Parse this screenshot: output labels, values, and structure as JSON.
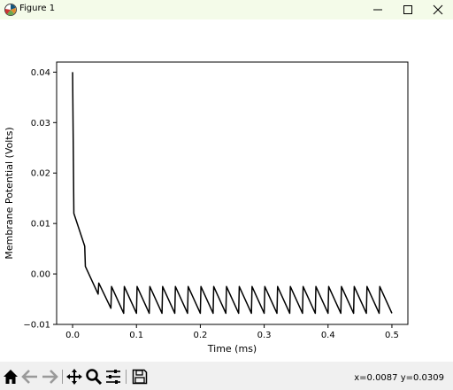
{
  "window": {
    "title": "Figure 1"
  },
  "icons": {
    "app": "matplotlib-icon",
    "minimize": "minimize-icon",
    "maximize": "maximize-icon",
    "close": "close-icon"
  },
  "toolbar": {
    "buttons": [
      "home-icon",
      "back-arrow-icon",
      "forward-arrow-icon",
      "pan-icon",
      "zoom-icon",
      "configure-subplots-icon",
      "save-icon"
    ],
    "coords": "x=0.0087 y=0.0309"
  },
  "chart_data": {
    "type": "line",
    "xlabel": "Time (ms)",
    "ylabel": "Membrane Potential (Volts)",
    "xlim": [
      -0.025,
      0.525
    ],
    "ylim": [
      -0.01,
      0.042
    ],
    "xticks": [
      0.0,
      0.1,
      0.2,
      0.3,
      0.4,
      0.5
    ],
    "xtick_labels": [
      "0.0",
      "0.1",
      "0.2",
      "0.3",
      "0.4",
      "0.5"
    ],
    "yticks": [
      -0.01,
      0.0,
      0.01,
      0.02,
      0.03,
      0.04
    ],
    "ytick_labels": [
      "−0.01",
      "0.00",
      "0.01",
      "0.02",
      "0.03",
      "0.04"
    ],
    "grid": false,
    "line_color": "#000000",
    "series": [
      {
        "x": [
          0.0,
          0.002,
          0.019,
          0.02,
          0.04,
          0.041,
          0.06,
          0.061,
          0.08,
          0.081,
          0.1,
          0.101,
          0.12,
          0.121,
          0.14,
          0.141,
          0.16,
          0.161,
          0.18,
          0.181,
          0.2,
          0.201,
          0.22,
          0.221,
          0.24,
          0.241,
          0.26,
          0.261,
          0.28,
          0.281,
          0.3,
          0.301,
          0.32,
          0.321,
          0.34,
          0.341,
          0.36,
          0.361,
          0.38,
          0.381,
          0.4,
          0.401,
          0.42,
          0.421,
          0.44,
          0.441,
          0.46,
          0.461,
          0.48,
          0.481,
          0.5
        ],
        "y": [
          0.04,
          0.012,
          0.0055,
          0.0015,
          -0.004,
          -0.0018,
          -0.0068,
          -0.0025,
          -0.0078,
          -0.0025,
          -0.0078,
          -0.0025,
          -0.0078,
          -0.0025,
          -0.0078,
          -0.0025,
          -0.0078,
          -0.0025,
          -0.0078,
          -0.0025,
          -0.0078,
          -0.0025,
          -0.0078,
          -0.0025,
          -0.0078,
          -0.0025,
          -0.0078,
          -0.0025,
          -0.0078,
          -0.0025,
          -0.0078,
          -0.0025,
          -0.0078,
          -0.0025,
          -0.0078,
          -0.0025,
          -0.0078,
          -0.0025,
          -0.0078,
          -0.0025,
          -0.0078,
          -0.0025,
          -0.0078,
          -0.0025,
          -0.0078,
          -0.0025,
          -0.0078,
          -0.0025,
          -0.0078,
          -0.0025,
          -0.0078
        ]
      }
    ]
  }
}
